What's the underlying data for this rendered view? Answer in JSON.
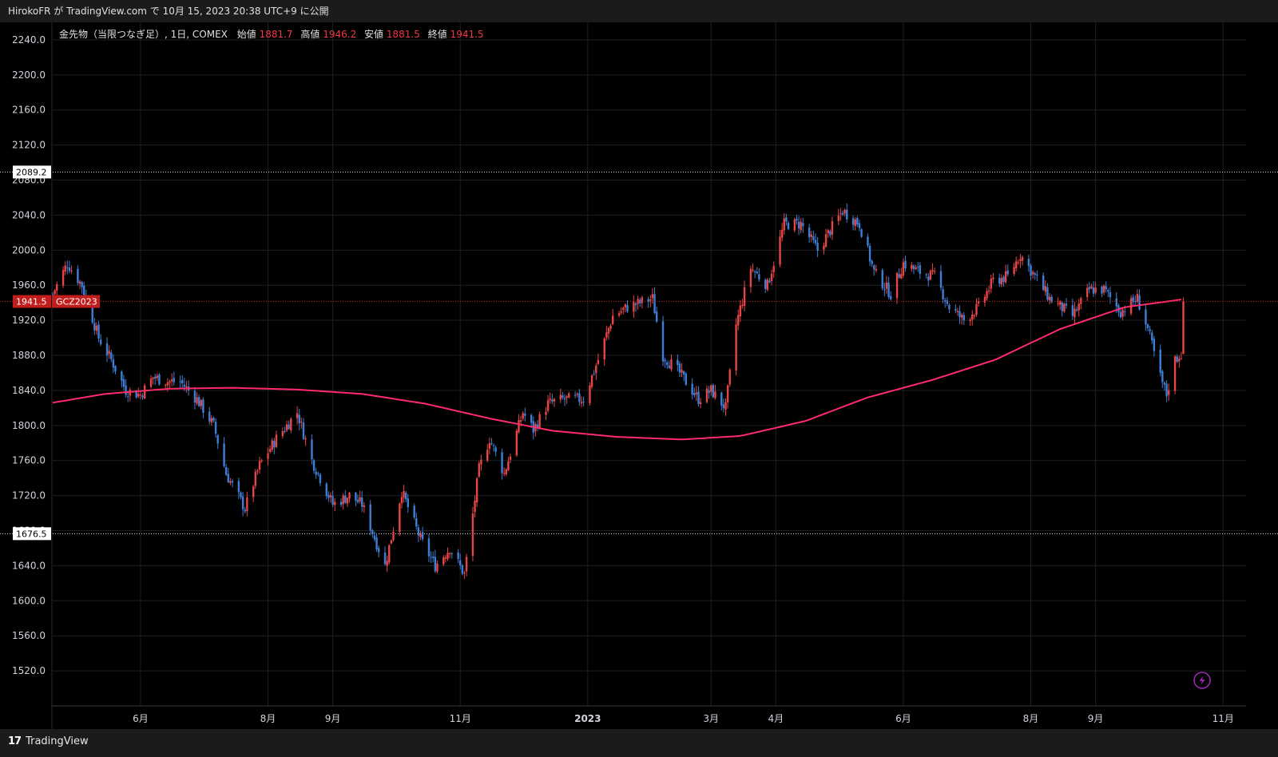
{
  "publish_line": "HirokoFR が TradingView.com で 10月 15, 2023 20:38 UTC+9 に公開",
  "brand_name": "TradingView",
  "brand_logo": "17",
  "legend": {
    "symbol": "金先物（当限つなぎ足）, 1日, COMEX",
    "open_label": "始値",
    "open": "1881.7",
    "high_label": "高値",
    "high": "1946.2",
    "low_label": "安値",
    "low": "1881.5",
    "close_label": "終値",
    "close": "1941.5"
  },
  "colors": {
    "up": "#e84545",
    "down": "#3d7fd6",
    "ma": "#ff2b6b",
    "price_tag": "#c21d1d"
  },
  "icons": [
    "lightning-icon",
    "tradingview-logo-icon"
  ],
  "chart_data": {
    "type": "candlestick",
    "ylim": [
      1480,
      2260
    ],
    "y_ticks": [
      "2240.0",
      "2200.0",
      "2160.0",
      "2120.0",
      "2080.0",
      "2040.0",
      "2000.0",
      "1960.0",
      "1920.0",
      "1880.0",
      "1840.0",
      "1800.0",
      "1760.0",
      "1720.0",
      "1680.0",
      "1640.0",
      "1600.0",
      "1560.0",
      "1520.0"
    ],
    "y_tick_values": [
      2240,
      2200,
      2160,
      2120,
      2080,
      2040,
      2000,
      1960,
      1920,
      1880,
      1840,
      1800,
      1760,
      1720,
      1680,
      1640,
      1600,
      1560,
      1520
    ],
    "x_ticks": [
      "6月",
      "8月",
      "9月",
      "11月",
      "2023",
      "3月",
      "4月",
      "6月",
      "8月",
      "9月",
      "11月"
    ],
    "x_tick_dates": [
      "2022-06-01",
      "2022-08-01",
      "2022-09-01",
      "2022-11-01",
      "2023-01-01",
      "2023-03-01",
      "2023-04-01",
      "2023-06-01",
      "2023-08-01",
      "2023-09-01",
      "2023-11-01"
    ],
    "x_range": [
      "2022-04-20",
      "2023-11-12"
    ],
    "grid": true,
    "horizontal_lines": [
      {
        "value": 2089.2,
        "label": "2089.2",
        "style": "dotted"
      },
      {
        "value": 1676.5,
        "label": "1676.5",
        "style": "dotted"
      }
    ],
    "last_price": {
      "value": 1941.5,
      "label": "1941.5",
      "symbol": "GCZ2023"
    },
    "anchors": [
      [
        "2022-04-20",
        1950
      ],
      [
        "2022-04-27",
        1985
      ],
      [
        "2022-05-04",
        1960
      ],
      [
        "2022-05-12",
        1900
      ],
      [
        "2022-05-18",
        1875
      ],
      [
        "2022-05-25",
        1840
      ],
      [
        "2022-06-01",
        1835
      ],
      [
        "2022-06-07",
        1855
      ],
      [
        "2022-06-14",
        1850
      ],
      [
        "2022-06-20",
        1850
      ],
      [
        "2022-06-28",
        1830
      ],
      [
        "2022-07-06",
        1800
      ],
      [
        "2022-07-12",
        1745
      ],
      [
        "2022-07-21",
        1705
      ],
      [
        "2022-07-28",
        1755
      ],
      [
        "2022-08-05",
        1785
      ],
      [
        "2022-08-15",
        1815
      ],
      [
        "2022-08-22",
        1760
      ],
      [
        "2022-09-01",
        1710
      ],
      [
        "2022-09-09",
        1720
      ],
      [
        "2022-09-15",
        1710
      ],
      [
        "2022-09-26",
        1640
      ],
      [
        "2022-10-04",
        1725
      ],
      [
        "2022-10-13",
        1670
      ],
      [
        "2022-10-20",
        1640
      ],
      [
        "2022-10-27",
        1660
      ],
      [
        "2022-11-03",
        1630
      ],
      [
        "2022-11-10",
        1750
      ],
      [
        "2022-11-15",
        1785
      ],
      [
        "2022-11-22",
        1745
      ],
      [
        "2022-12-01",
        1815
      ],
      [
        "2022-12-06",
        1795
      ],
      [
        "2022-12-13",
        1825
      ],
      [
        "2022-12-20",
        1830
      ],
      [
        "2022-12-30",
        1830
      ],
      [
        "2023-01-06",
        1875
      ],
      [
        "2023-01-13",
        1925
      ],
      [
        "2023-01-20",
        1935
      ],
      [
        "2023-02-01",
        1945
      ],
      [
        "2023-02-06",
        1880
      ],
      [
        "2023-02-14",
        1860
      ],
      [
        "2023-02-23",
        1830
      ],
      [
        "2023-03-01",
        1840
      ],
      [
        "2023-03-08",
        1820
      ],
      [
        "2023-03-13",
        1915
      ],
      [
        "2023-03-20",
        1980
      ],
      [
        "2023-03-28",
        1960
      ],
      [
        "2023-04-05",
        2030
      ],
      [
        "2023-04-13",
        2030
      ],
      [
        "2023-04-21",
        2000
      ],
      [
        "2023-05-03",
        2045
      ],
      [
        "2023-05-11",
        2030
      ],
      [
        "2023-05-18",
        1975
      ],
      [
        "2023-05-26",
        1950
      ],
      [
        "2023-06-01",
        1985
      ],
      [
        "2023-06-09",
        1975
      ],
      [
        "2023-06-16",
        1970
      ],
      [
        "2023-06-23",
        1935
      ],
      [
        "2023-06-30",
        1920
      ],
      [
        "2023-07-07",
        1935
      ],
      [
        "2023-07-14",
        1965
      ],
      [
        "2023-07-21",
        1970
      ],
      [
        "2023-07-27",
        1995
      ],
      [
        "2023-08-03",
        1970
      ],
      [
        "2023-08-10",
        1945
      ],
      [
        "2023-08-21",
        1925
      ],
      [
        "2023-08-29",
        1955
      ],
      [
        "2023-09-05",
        1955
      ],
      [
        "2023-09-13",
        1930
      ],
      [
        "2023-09-21",
        1945
      ],
      [
        "2023-09-26",
        1910
      ],
      [
        "2023-10-02",
        1855
      ],
      [
        "2023-10-05",
        1835
      ],
      [
        "2023-10-09",
        1875
      ],
      [
        "2023-10-12",
        1882
      ],
      [
        "2023-10-13",
        1941.5
      ]
    ],
    "ma_anchors": [
      [
        "2022-04-20",
        1826
      ],
      [
        "2022-05-15",
        1836
      ],
      [
        "2022-06-15",
        1842
      ],
      [
        "2022-07-15",
        1843
      ],
      [
        "2022-08-15",
        1841
      ],
      [
        "2022-09-15",
        1836
      ],
      [
        "2022-10-15",
        1825
      ],
      [
        "2022-11-15",
        1808
      ],
      [
        "2022-12-15",
        1794
      ],
      [
        "2023-01-15",
        1787
      ],
      [
        "2023-02-15",
        1784
      ],
      [
        "2023-03-15",
        1788
      ],
      [
        "2023-04-15",
        1805
      ],
      [
        "2023-05-15",
        1832
      ],
      [
        "2023-06-15",
        1852
      ],
      [
        "2023-07-15",
        1875
      ],
      [
        "2023-08-15",
        1910
      ],
      [
        "2023-09-15",
        1935
      ],
      [
        "2023-10-13",
        1944
      ]
    ]
  }
}
